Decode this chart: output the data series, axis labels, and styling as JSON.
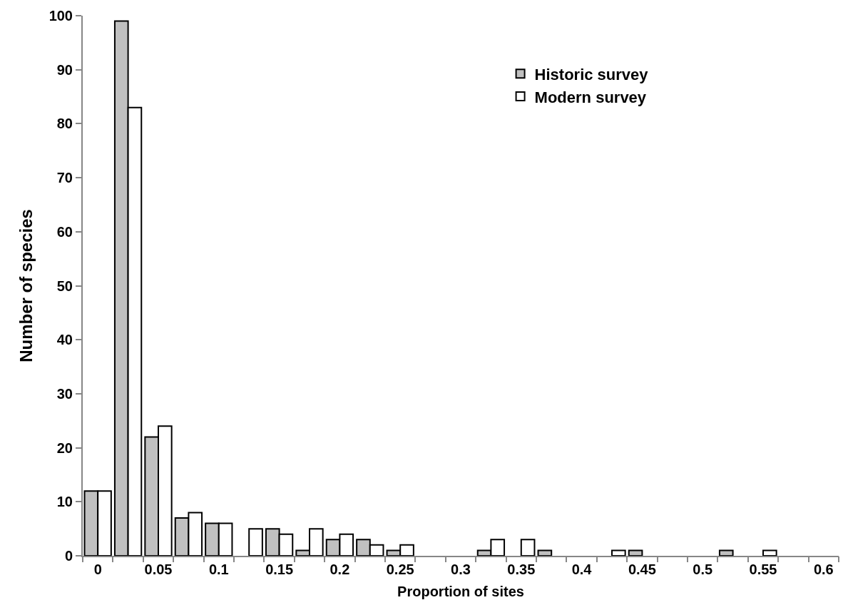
{
  "chart_data": {
    "type": "bar",
    "xlabel": "Proportion of sites",
    "ylabel": "Number of species",
    "categories": [
      "0",
      null,
      "0.05",
      null,
      "0.1",
      null,
      "0.15",
      null,
      "0.2",
      null,
      "0.25",
      null,
      "0.3",
      null,
      "0.35",
      null,
      "0.4",
      null,
      "0.45",
      null,
      "0.5",
      null,
      "0.55",
      null,
      "0.6"
    ],
    "series": [
      {
        "name": "Historic survey",
        "color": "#c0c0c0",
        "values": [
          12,
          99,
          22,
          7,
          6,
          0,
          5,
          1,
          3,
          3,
          1,
          0,
          0,
          1,
          0,
          1,
          0,
          0,
          1,
          0,
          0,
          1,
          0,
          0,
          0
        ]
      },
      {
        "name": "Modern survey",
        "color": "#ffffff",
        "values": [
          12,
          83,
          24,
          8,
          6,
          5,
          4,
          5,
          4,
          2,
          2,
          0,
          0,
          3,
          3,
          0,
          0,
          1,
          0,
          0,
          0,
          0,
          1,
          0,
          0
        ]
      }
    ],
    "ylim": [
      0,
      100
    ],
    "yticks": [
      0,
      10,
      20,
      30,
      40,
      50,
      60,
      70,
      80,
      90,
      100
    ],
    "grid": false,
    "legend": "top right"
  }
}
